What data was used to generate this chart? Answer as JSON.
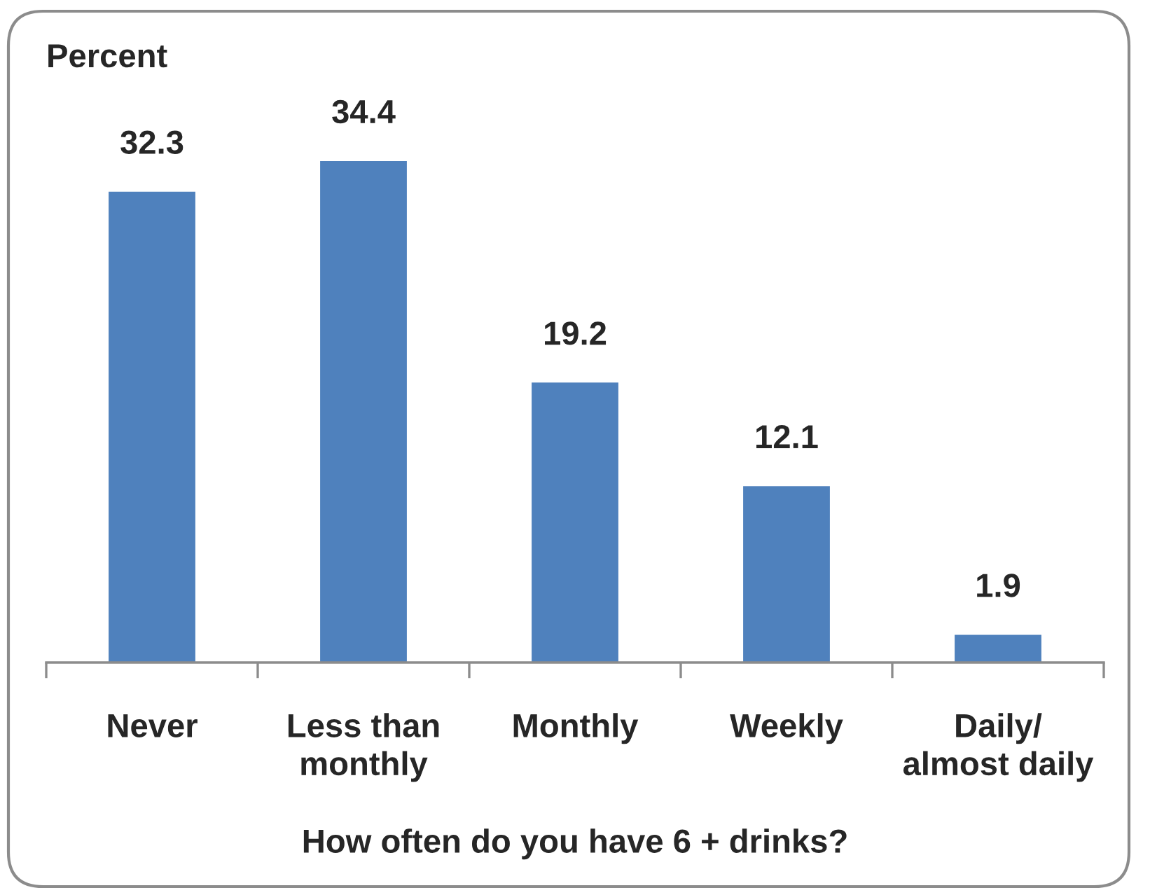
{
  "chart_data": {
    "type": "bar",
    "ylabel": "Percent",
    "xlabel": "How often do you have 6 + drinks?",
    "categories": [
      "Never",
      "Less than\nmonthly",
      "Monthly",
      "Weekly",
      "Daily/\nalmost daily"
    ],
    "values": [
      32.3,
      34.4,
      19.2,
      12.1,
      1.9
    ],
    "color": "#4f81bd",
    "data_labels": true,
    "tick_labels": "x",
    "grid": false,
    "legend": false
  }
}
